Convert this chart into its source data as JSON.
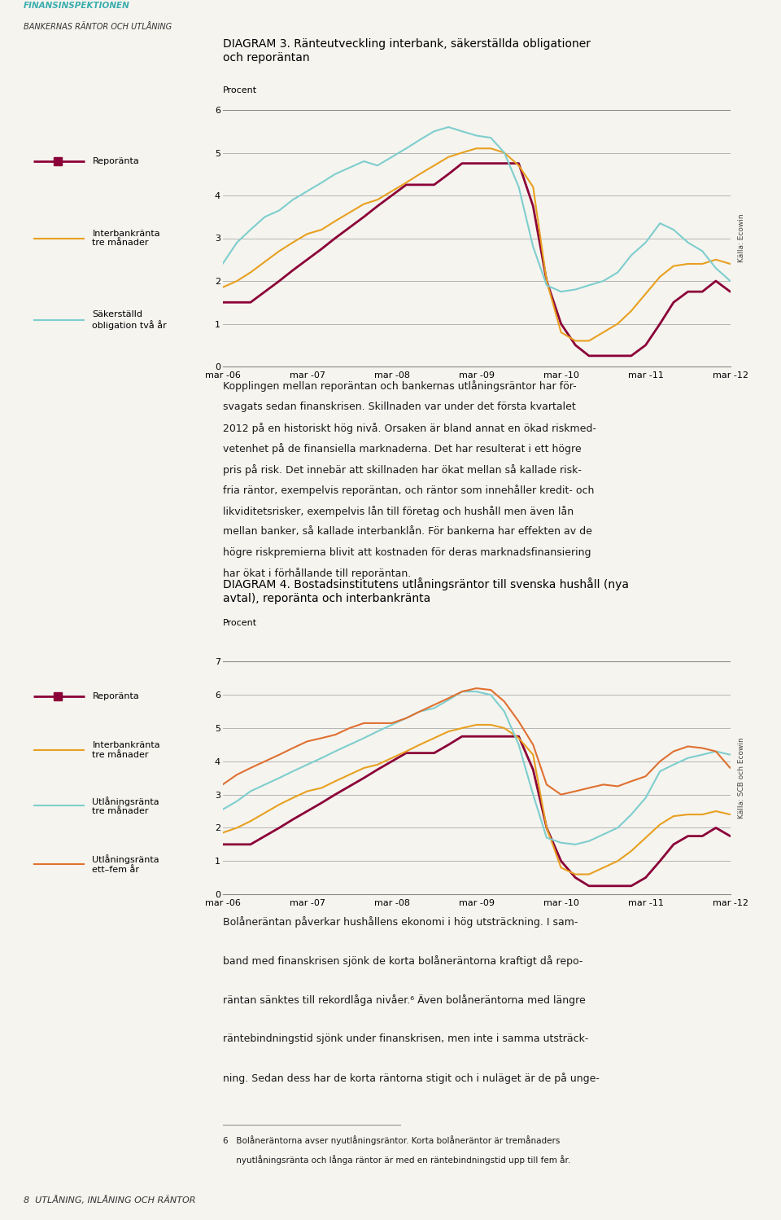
{
  "page_header_line1": "FINANSINSPEKTIONEN",
  "page_header_line2": "BANKERNAS RÄNTOR OCH UTLÅNING",
  "page_footer": "8  UTLÅNING, INLÅNING OCH RÄNTOR",
  "chart1": {
    "diagram_label": "DIAGRAM 3.",
    "title": " Ränteutveckling interbank, säkerställda obligationer\noch reporäntan",
    "ylabel": "Procent",
    "ylim": [
      0,
      6
    ],
    "yticks": [
      0,
      1,
      2,
      3,
      4,
      5,
      6
    ],
    "x_labels": [
      "mar -06",
      "mar -07",
      "mar -08",
      "mar -09",
      "mar -10",
      "mar -11",
      "mar -12"
    ],
    "source": "Källa: Ecowin",
    "legend": [
      {
        "label": "Reporänta",
        "color": "#8B0038",
        "lw": 2.0
      },
      {
        "label": "Interbankränta\ntre månader",
        "color": "#E8A020",
        "lw": 1.5
      },
      {
        "label": "Säkerställd\nobligation två år",
        "color": "#7ECECE",
        "lw": 1.5
      }
    ],
    "series": {
      "repo": {
        "color": "#8B0038",
        "lw": 2.0,
        "x": [
          0,
          0.17,
          0.33,
          0.5,
          0.67,
          0.83,
          1.0,
          1.17,
          1.33,
          1.5,
          1.67,
          1.83,
          2.0,
          2.17,
          2.33,
          2.5,
          2.67,
          2.83,
          3.0,
          3.17,
          3.33,
          3.5,
          3.67,
          3.83,
          4.0,
          4.17,
          4.33,
          4.5,
          4.67,
          4.83,
          5.0,
          5.17,
          5.33,
          5.5,
          5.67,
          5.83,
          6.0
        ],
        "y": [
          1.5,
          1.5,
          1.5,
          1.75,
          2.0,
          2.25,
          2.5,
          2.75,
          3.0,
          3.25,
          3.5,
          3.75,
          4.0,
          4.25,
          4.25,
          4.25,
          4.5,
          4.75,
          4.75,
          4.75,
          4.75,
          4.75,
          3.75,
          2.0,
          1.0,
          0.5,
          0.25,
          0.25,
          0.25,
          0.25,
          0.5,
          1.0,
          1.5,
          1.75,
          1.75,
          2.0,
          1.75
        ]
      },
      "interbank3m": {
        "color": "#E8A020",
        "lw": 1.5,
        "x": [
          0,
          0.17,
          0.33,
          0.5,
          0.67,
          0.83,
          1.0,
          1.17,
          1.33,
          1.5,
          1.67,
          1.83,
          2.0,
          2.17,
          2.33,
          2.5,
          2.67,
          2.83,
          3.0,
          3.17,
          3.33,
          3.5,
          3.67,
          3.83,
          4.0,
          4.17,
          4.33,
          4.5,
          4.67,
          4.83,
          5.0,
          5.17,
          5.33,
          5.5,
          5.67,
          5.83,
          6.0
        ],
        "y": [
          1.85,
          2.0,
          2.2,
          2.45,
          2.7,
          2.9,
          3.1,
          3.2,
          3.4,
          3.6,
          3.8,
          3.9,
          4.1,
          4.3,
          4.5,
          4.7,
          4.9,
          5.0,
          5.1,
          5.1,
          5.0,
          4.7,
          4.2,
          2.0,
          0.8,
          0.6,
          0.6,
          0.8,
          1.0,
          1.3,
          1.7,
          2.1,
          2.35,
          2.4,
          2.4,
          2.5,
          2.4
        ]
      },
      "sakerst2y": {
        "color": "#7ECECE",
        "lw": 1.5,
        "x": [
          0,
          0.17,
          0.33,
          0.5,
          0.67,
          0.83,
          1.0,
          1.17,
          1.33,
          1.5,
          1.67,
          1.83,
          2.0,
          2.17,
          2.33,
          2.5,
          2.67,
          2.83,
          3.0,
          3.17,
          3.33,
          3.5,
          3.67,
          3.83,
          4.0,
          4.17,
          4.33,
          4.5,
          4.67,
          4.83,
          5.0,
          5.17,
          5.33,
          5.5,
          5.67,
          5.83,
          6.0
        ],
        "y": [
          2.4,
          2.9,
          3.2,
          3.5,
          3.65,
          3.9,
          4.1,
          4.3,
          4.5,
          4.65,
          4.8,
          4.7,
          4.9,
          5.1,
          5.3,
          5.5,
          5.6,
          5.5,
          5.4,
          5.35,
          5.0,
          4.2,
          2.8,
          1.9,
          1.75,
          1.8,
          1.9,
          2.0,
          2.2,
          2.6,
          2.9,
          3.35,
          3.2,
          2.9,
          2.7,
          2.3,
          2.0
        ]
      }
    }
  },
  "chart2": {
    "diagram_label": "DIAGRAM 4.",
    "title": " Bostadsinstitutens utlåningsräntor till svenska hushåll (nya\navtal), reporänta och interbankränta",
    "ylabel": "Procent",
    "ylim": [
      0,
      7
    ],
    "yticks": [
      0,
      1,
      2,
      3,
      4,
      5,
      6,
      7
    ],
    "x_labels": [
      "mar -06",
      "mar -07",
      "mar -08",
      "mar -09",
      "mar -10",
      "mar -11",
      "mar -12"
    ],
    "source": "Källa: SCB och Ecowin",
    "legend": [
      {
        "label": "Reporänta",
        "color": "#8B0038",
        "lw": 2.0
      },
      {
        "label": "Interbankränta\ntre månader",
        "color": "#E8A020",
        "lw": 1.5
      },
      {
        "label": "Utlåningsränta\ntre månader",
        "color": "#7ECECE",
        "lw": 1.5
      },
      {
        "label": "Utlåningsränta\nett–fem år",
        "color": "#E07030",
        "lw": 1.5
      }
    ],
    "series": {
      "repo": {
        "color": "#8B0038",
        "lw": 2.0,
        "x": [
          0,
          0.17,
          0.33,
          0.5,
          0.67,
          0.83,
          1.0,
          1.17,
          1.33,
          1.5,
          1.67,
          1.83,
          2.0,
          2.17,
          2.33,
          2.5,
          2.67,
          2.83,
          3.0,
          3.17,
          3.33,
          3.5,
          3.67,
          3.83,
          4.0,
          4.17,
          4.33,
          4.5,
          4.67,
          4.83,
          5.0,
          5.17,
          5.33,
          5.5,
          5.67,
          5.83,
          6.0
        ],
        "y": [
          1.5,
          1.5,
          1.5,
          1.75,
          2.0,
          2.25,
          2.5,
          2.75,
          3.0,
          3.25,
          3.5,
          3.75,
          4.0,
          4.25,
          4.25,
          4.25,
          4.5,
          4.75,
          4.75,
          4.75,
          4.75,
          4.75,
          3.75,
          2.0,
          1.0,
          0.5,
          0.25,
          0.25,
          0.25,
          0.25,
          0.5,
          1.0,
          1.5,
          1.75,
          1.75,
          2.0,
          1.75
        ]
      },
      "interbank3m": {
        "color": "#E8A020",
        "lw": 1.5,
        "x": [
          0,
          0.17,
          0.33,
          0.5,
          0.67,
          0.83,
          1.0,
          1.17,
          1.33,
          1.5,
          1.67,
          1.83,
          2.0,
          2.17,
          2.33,
          2.5,
          2.67,
          2.83,
          3.0,
          3.17,
          3.33,
          3.5,
          3.67,
          3.83,
          4.0,
          4.17,
          4.33,
          4.5,
          4.67,
          4.83,
          5.0,
          5.17,
          5.33,
          5.5,
          5.67,
          5.83,
          6.0
        ],
        "y": [
          1.85,
          2.0,
          2.2,
          2.45,
          2.7,
          2.9,
          3.1,
          3.2,
          3.4,
          3.6,
          3.8,
          3.9,
          4.1,
          4.3,
          4.5,
          4.7,
          4.9,
          5.0,
          5.1,
          5.1,
          5.0,
          4.7,
          4.2,
          2.0,
          0.8,
          0.6,
          0.6,
          0.8,
          1.0,
          1.3,
          1.7,
          2.1,
          2.35,
          2.4,
          2.4,
          2.5,
          2.4
        ]
      },
      "utl3m": {
        "color": "#7ECECE",
        "lw": 1.5,
        "x": [
          0,
          0.17,
          0.33,
          0.5,
          0.67,
          0.83,
          1.0,
          1.17,
          1.33,
          1.5,
          1.67,
          1.83,
          2.0,
          2.17,
          2.33,
          2.5,
          2.67,
          2.83,
          3.0,
          3.17,
          3.33,
          3.5,
          3.67,
          3.83,
          4.0,
          4.17,
          4.33,
          4.5,
          4.67,
          4.83,
          5.0,
          5.17,
          5.33,
          5.5,
          5.67,
          5.83,
          6.0
        ],
        "y": [
          2.55,
          2.8,
          3.1,
          3.3,
          3.5,
          3.7,
          3.9,
          4.1,
          4.3,
          4.5,
          4.7,
          4.9,
          5.1,
          5.3,
          5.5,
          5.6,
          5.85,
          6.1,
          6.1,
          6.0,
          5.5,
          4.5,
          3.0,
          1.7,
          1.55,
          1.5,
          1.6,
          1.8,
          2.0,
          2.4,
          2.9,
          3.7,
          3.9,
          4.1,
          4.2,
          4.3,
          4.2
        ]
      },
      "utl1_5y": {
        "color": "#E07030",
        "lw": 1.5,
        "x": [
          0,
          0.17,
          0.33,
          0.5,
          0.67,
          0.83,
          1.0,
          1.17,
          1.33,
          1.5,
          1.67,
          1.83,
          2.0,
          2.17,
          2.33,
          2.5,
          2.67,
          2.83,
          3.0,
          3.17,
          3.33,
          3.5,
          3.67,
          3.83,
          4.0,
          4.17,
          4.33,
          4.5,
          4.67,
          4.83,
          5.0,
          5.17,
          5.33,
          5.5,
          5.67,
          5.83,
          6.0
        ],
        "y": [
          3.3,
          3.6,
          3.8,
          4.0,
          4.2,
          4.4,
          4.6,
          4.7,
          4.8,
          5.0,
          5.15,
          5.15,
          5.15,
          5.3,
          5.5,
          5.7,
          5.9,
          6.1,
          6.2,
          6.15,
          5.8,
          5.2,
          4.5,
          3.3,
          3.0,
          3.1,
          3.2,
          3.3,
          3.25,
          3.4,
          3.55,
          4.0,
          4.3,
          4.45,
          4.4,
          4.3,
          3.8
        ]
      }
    }
  },
  "text_block1_lines": [
    "Kopplingen mellan reporäntan och bankernas utlåningsräntor har för-",
    "svagats sedan finanskrisen. Skillnaden var under det första kvartalet",
    "2012 på en historiskt hög nivå. Orsaken är bland annat en ökad riskmed-",
    "vetenhet på de finansiella marknaderna. Det har resulterat i ett högre",
    "pris på risk. Det innebär att skillnaden har ökat mellan så kallade risk-",
    "fria räntor, exempelvis reporäntan, och räntor som innehåller kredit- och",
    "likviditetsrisker, exempelvis lån till företag och hushåll men även lån",
    "mellan banker, så kallade interbanklån. För bankerna har effekten av de",
    "högre riskpremierna blivit att kostnaden för deras marknadsfinansiering",
    "har ökat i förhållande till reporäntan."
  ],
  "text_block2_lines": [
    "Bolåneräntan påverkar hushållens ekonomi i hög utsträckning. I sam-",
    "band med finanskrisen sjönk de korta bolåneräntorna kraftigt då repo-",
    "räntan sänktes till rekordlåga nivåer.⁶ Även bolåneräntorna med längre",
    "räntebindningstid sjönk under finanskrisen, men inte i samma utsträck-",
    "ning. Sedan dess har de korta räntorna stigit och i nuläget är de på unge-"
  ],
  "footnote_line1": "6   Bolåneräntorna avser nyutlåningsräntor. Korta bolåneräntor är tremånaders",
  "footnote_line2": "     nyutlåningsränta och långa räntor är med en räntebindningstid upp till fem år.",
  "bg_color": "#F5F4EF",
  "chart_bg": "#F5F4EF",
  "grid_color": "#AAAAAA",
  "text_color": "#1A1A1A"
}
